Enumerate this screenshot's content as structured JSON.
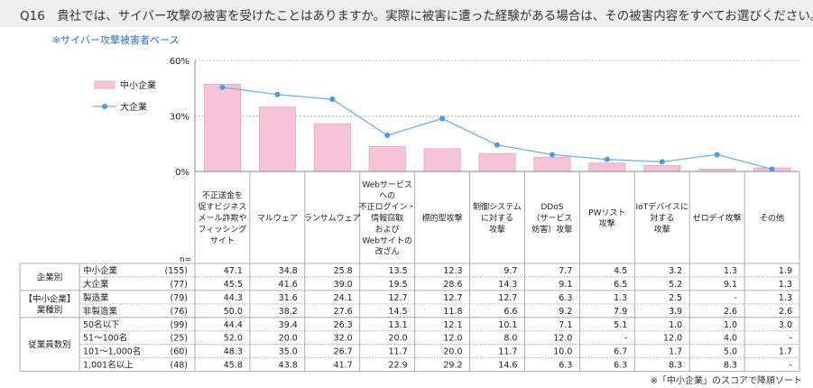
{
  "header": {
    "title": "Q16　貴社では、サイバー攻撃の被害を受けたことはありますか。実際に被害に遭った経験がある場合は、その被害内容をすべてお選びください。",
    "base_note": "※サイバー攻撃被害者ベース",
    "footnote": "※「中小企業」のスコアで降順ソート"
  },
  "colors": {
    "bar": "#f7c3d9",
    "bar_stroke": "#e8a6c3",
    "line": "#6fb2ee",
    "marker": "#4a9be6",
    "grid": "#bfbfbf",
    "table_line": "#9a9a9a"
  },
  "chart_data": {
    "type": "bar",
    "categories": [
      [
        "不正送金を",
        "促すビジネス",
        "メール詐欺や",
        "フィッシング",
        "サイト"
      ],
      [
        "マルウェア"
      ],
      [
        "ランサムウェア"
      ],
      [
        "Webサービス",
        "への",
        "不正ログイン・",
        "情報窃取",
        "および",
        "Webサイトの",
        "改ざん"
      ],
      [
        "標的型攻撃"
      ],
      [
        "制御システム",
        "に対する",
        "攻撃"
      ],
      [
        "DDoS",
        "（サービス",
        "妨害）攻撃"
      ],
      [
        "PWリスト",
        "攻撃"
      ],
      [
        "IoTデバイスに",
        "対する",
        "攻撃"
      ],
      [
        "ゼロデイ攻撃"
      ],
      [
        "その他"
      ]
    ],
    "yticks": [
      "60%",
      "30%",
      "0%"
    ],
    "ylim": [
      0,
      60
    ],
    "series": [
      {
        "name": "中小企業",
        "kind": "bar",
        "values": [
          47.1,
          34.8,
          25.8,
          13.5,
          12.3,
          9.7,
          7.7,
          4.5,
          3.2,
          1.3,
          1.9
        ]
      },
      {
        "name": "大企業",
        "kind": "line",
        "values": [
          45.5,
          41.6,
          39.0,
          19.5,
          28.6,
          14.3,
          9.1,
          6.5,
          5.2,
          9.1,
          1.3
        ]
      }
    ],
    "n_label": "n=",
    "table": {
      "groups": [
        {
          "label": [
            "企業別"
          ],
          "rows": [
            {
              "name": "中小企業",
              "n": "(155)",
              "values": [
                "47.1",
                "34.8",
                "25.8",
                "13.5",
                "12.3",
                "9.7",
                "7.7",
                "4.5",
                "3.2",
                "1.3",
                "1.9"
              ]
            },
            {
              "name": "大企業",
              "n": "(77)",
              "values": [
                "45.5",
                "41.6",
                "39.0",
                "19.5",
                "28.6",
                "14.3",
                "9.1",
                "6.5",
                "5.2",
                "9.1",
                "1.3"
              ]
            }
          ]
        },
        {
          "label": [
            "【中小企業】",
            "業種別"
          ],
          "rows": [
            {
              "name": "製造業",
              "n": "(79)",
              "values": [
                "44.3",
                "31.6",
                "24.1",
                "12.7",
                "12.7",
                "12.7",
                "6.3",
                "1.3",
                "2.5",
                "-",
                "1.3"
              ]
            },
            {
              "name": "非製造業",
              "n": "(76)",
              "values": [
                "50.0",
                "38.2",
                "27.6",
                "14.5",
                "11.8",
                "6.6",
                "9.2",
                "7.9",
                "3.9",
                "2.6",
                "2.6"
              ]
            }
          ]
        },
        {
          "label": [
            "従業員数別"
          ],
          "rows": [
            {
              "name": "50名以下",
              "n": "(99)",
              "values": [
                "44.4",
                "39.4",
                "26.3",
                "13.1",
                "12.1",
                "10.1",
                "7.1",
                "5.1",
                "1.0",
                "1.0",
                "3.0"
              ]
            },
            {
              "name": "51～100名",
              "n": "(25)",
              "values": [
                "52.0",
                "20.0",
                "32.0",
                "20.0",
                "12.0",
                "8.0",
                "12.0",
                "-",
                "12.0",
                "4.0",
                "-"
              ]
            },
            {
              "name": "101～1,000名",
              "n": "(60)",
              "values": [
                "48.3",
                "35.0",
                "26.7",
                "11.7",
                "20.0",
                "11.7",
                "10.0",
                "6.7",
                "1.7",
                "5.0",
                "1.7"
              ]
            },
            {
              "name": "1,001名以上",
              "n": "(48)",
              "values": [
                "45.8",
                "43.8",
                "41.7",
                "22.9",
                "29.2",
                "14.6",
                "6.3",
                "6.3",
                "8.3",
                "8.3",
                "-"
              ]
            }
          ]
        }
      ]
    }
  }
}
